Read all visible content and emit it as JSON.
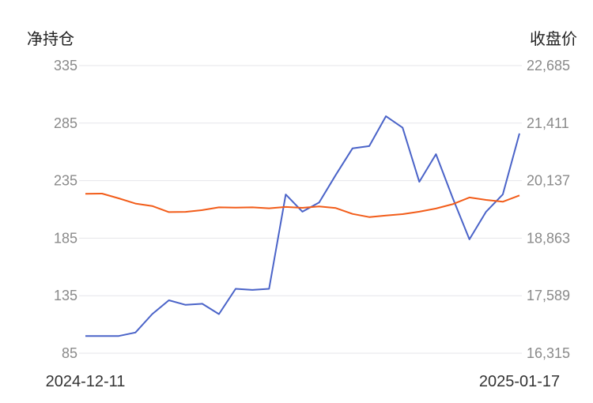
{
  "chart_data": {
    "type": "line",
    "left_axis_title": "净持仓",
    "right_axis_title": "收盘价",
    "left_ticks": [
      "335",
      "285",
      "235",
      "185",
      "135",
      "85"
    ],
    "right_ticks": [
      "22,685",
      "21,411",
      "20,137",
      "18,863",
      "17,589",
      "16,315"
    ],
    "ylim_left": [
      85,
      335
    ],
    "ylim_right": [
      16315,
      22685
    ],
    "x_start_label": "2024-12-11",
    "x_end_label": "2025-01-17",
    "grid": true,
    "colors": {
      "net_position": "#4a63c8",
      "close_price": "#f25c19"
    },
    "series": [
      {
        "axis": "left",
        "color": "#4a63c8",
        "values": [
          100,
          100,
          100,
          103,
          119,
          131,
          127,
          128,
          119,
          141,
          140,
          141,
          223,
          208,
          216,
          240,
          263,
          265,
          291,
          281,
          234,
          258,
          220,
          184,
          208,
          223,
          276
        ]
      },
      {
        "axis": "right",
        "color": "#f25c19",
        "values": [
          19845,
          19850,
          19745,
          19630,
          19575,
          19440,
          19445,
          19485,
          19545,
          19540,
          19545,
          19525,
          19555,
          19535,
          19565,
          19530,
          19400,
          19330,
          19365,
          19395,
          19450,
          19520,
          19615,
          19765,
          19710,
          19670,
          19810
        ]
      }
    ]
  }
}
